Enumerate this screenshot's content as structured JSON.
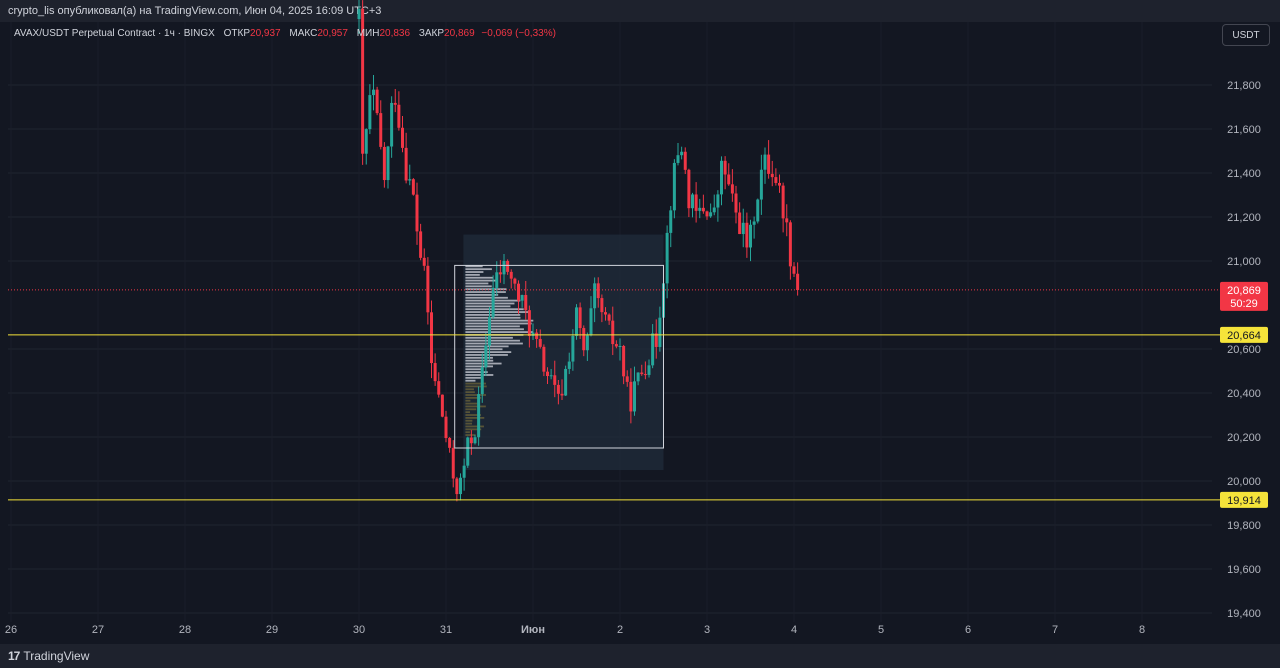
{
  "header": {
    "publish_note": "crypto_lis опубликовал(а) на TradingView.com, Июн 04, 2025 16:09 UTC+3"
  },
  "legend": {
    "symbol": "AVAX/USDT Perpetual Contract · 1ч · BINGX",
    "open_label": "ОТКР",
    "open_value": "20,937",
    "high_label": "МАКС",
    "high_value": "20,957",
    "low_label": "МИН",
    "low_value": "20,836",
    "close_label": "ЗАКР",
    "close_value": "20,869",
    "change": "−0,069 (−0,33%)"
  },
  "currency_button": "USDT",
  "footer": {
    "brand": "TradingView"
  },
  "colors": {
    "background": "#131722",
    "up": "#26a69a",
    "down": "#f23645",
    "level_line": "#f5e33a",
    "rect_border": "#d1d4dc"
  },
  "chart_data": {
    "type": "candlestick",
    "title": "",
    "price_axis": {
      "ticks": [
        "21,800",
        "21,600",
        "21,400",
        "21,200",
        "21,000",
        "20,600",
        "20,400",
        "20,200",
        "20,000",
        "19,800",
        "19,600",
        "19,400"
      ],
      "tick_values": [
        21.8,
        21.6,
        21.4,
        21.2,
        21.0,
        20.6,
        20.4,
        20.2,
        20.0,
        19.8,
        19.6,
        19.4
      ],
      "range": [
        19.39,
        22.15
      ]
    },
    "time_axis": {
      "ticks": [
        "26",
        "27",
        "28",
        "29",
        "30",
        "31",
        "Июн",
        "2",
        "3",
        "4",
        "5",
        "6",
        "7",
        "8"
      ],
      "tick_days": [
        -6,
        -5,
        -4,
        -3,
        -2,
        -1,
        0,
        1,
        2,
        3,
        4,
        5,
        6,
        7
      ]
    },
    "last_price": {
      "value": 20.869,
      "label": "20,869",
      "countdown": "50:29"
    },
    "levels": [
      {
        "value": 20.664,
        "label": "20,664"
      },
      {
        "value": 19.914,
        "label": "19,914"
      }
    ],
    "range_box": {
      "start_day": -0.9,
      "end_day": 1.5,
      "high": 20.98,
      "low": 20.15
    },
    "volume_profile_bg": {
      "start_day": -0.8,
      "end_day": 1.5,
      "high": 21.12,
      "low": 20.05
    },
    "path": [
      {
        "day": -2.0,
        "price": 22.1
      },
      {
        "day": -1.96,
        "price": 21.45
      },
      {
        "day": -1.85,
        "price": 21.8
      },
      {
        "day": -1.7,
        "price": 21.35
      },
      {
        "day": -1.6,
        "price": 21.8
      },
      {
        "day": -1.45,
        "price": 21.4
      },
      {
        "day": -1.38,
        "price": 21.3
      },
      {
        "day": -1.32,
        "price": 21.1
      },
      {
        "day": -1.22,
        "price": 20.85
      },
      {
        "day": -1.18,
        "price": 20.55
      },
      {
        "day": -1.12,
        "price": 20.45
      },
      {
        "day": -1.02,
        "price": 20.25
      },
      {
        "day": -0.94,
        "price": 20.05
      },
      {
        "day": -0.85,
        "price": 19.95
      },
      {
        "day": -0.75,
        "price": 20.15
      },
      {
        "day": -0.66,
        "price": 20.25
      },
      {
        "day": -0.56,
        "price": 20.55
      },
      {
        "day": -0.48,
        "price": 20.85
      },
      {
        "day": -0.38,
        "price": 20.95
      },
      {
        "day": -0.3,
        "price": 20.98
      },
      {
        "day": -0.22,
        "price": 20.88
      },
      {
        "day": -0.1,
        "price": 20.78
      },
      {
        "day": 0.0,
        "price": 20.65
      },
      {
        "day": 0.1,
        "price": 20.55
      },
      {
        "day": 0.2,
        "price": 20.45
      },
      {
        "day": 0.3,
        "price": 20.35
      },
      {
        "day": 0.4,
        "price": 20.55
      },
      {
        "day": 0.5,
        "price": 20.75
      },
      {
        "day": 0.6,
        "price": 20.55
      },
      {
        "day": 0.7,
        "price": 20.85
      },
      {
        "day": 0.8,
        "price": 20.75
      },
      {
        "day": 0.9,
        "price": 20.65
      },
      {
        "day": 1.0,
        "price": 20.6
      },
      {
        "day": 1.1,
        "price": 20.35
      },
      {
        "day": 1.2,
        "price": 20.45
      },
      {
        "day": 1.3,
        "price": 20.55
      },
      {
        "day": 1.42,
        "price": 20.65
      },
      {
        "day": 1.5,
        "price": 20.95
      },
      {
        "day": 1.6,
        "price": 21.35
      },
      {
        "day": 1.7,
        "price": 21.55
      },
      {
        "day": 1.78,
        "price": 21.3
      },
      {
        "day": 1.88,
        "price": 21.2
      },
      {
        "day": 1.98,
        "price": 21.25
      },
      {
        "day": 2.08,
        "price": 21.2
      },
      {
        "day": 2.18,
        "price": 21.45
      },
      {
        "day": 2.3,
        "price": 21.25
      },
      {
        "day": 2.4,
        "price": 21.15
      },
      {
        "day": 2.48,
        "price": 21.05
      },
      {
        "day": 2.55,
        "price": 21.25
      },
      {
        "day": 2.65,
        "price": 21.45
      },
      {
        "day": 2.78,
        "price": 21.4
      },
      {
        "day": 2.9,
        "price": 21.2
      },
      {
        "day": 2.95,
        "price": 21.05
      },
      {
        "day": 3.0,
        "price": 20.95
      },
      {
        "day": 3.05,
        "price": 20.87
      }
    ]
  }
}
